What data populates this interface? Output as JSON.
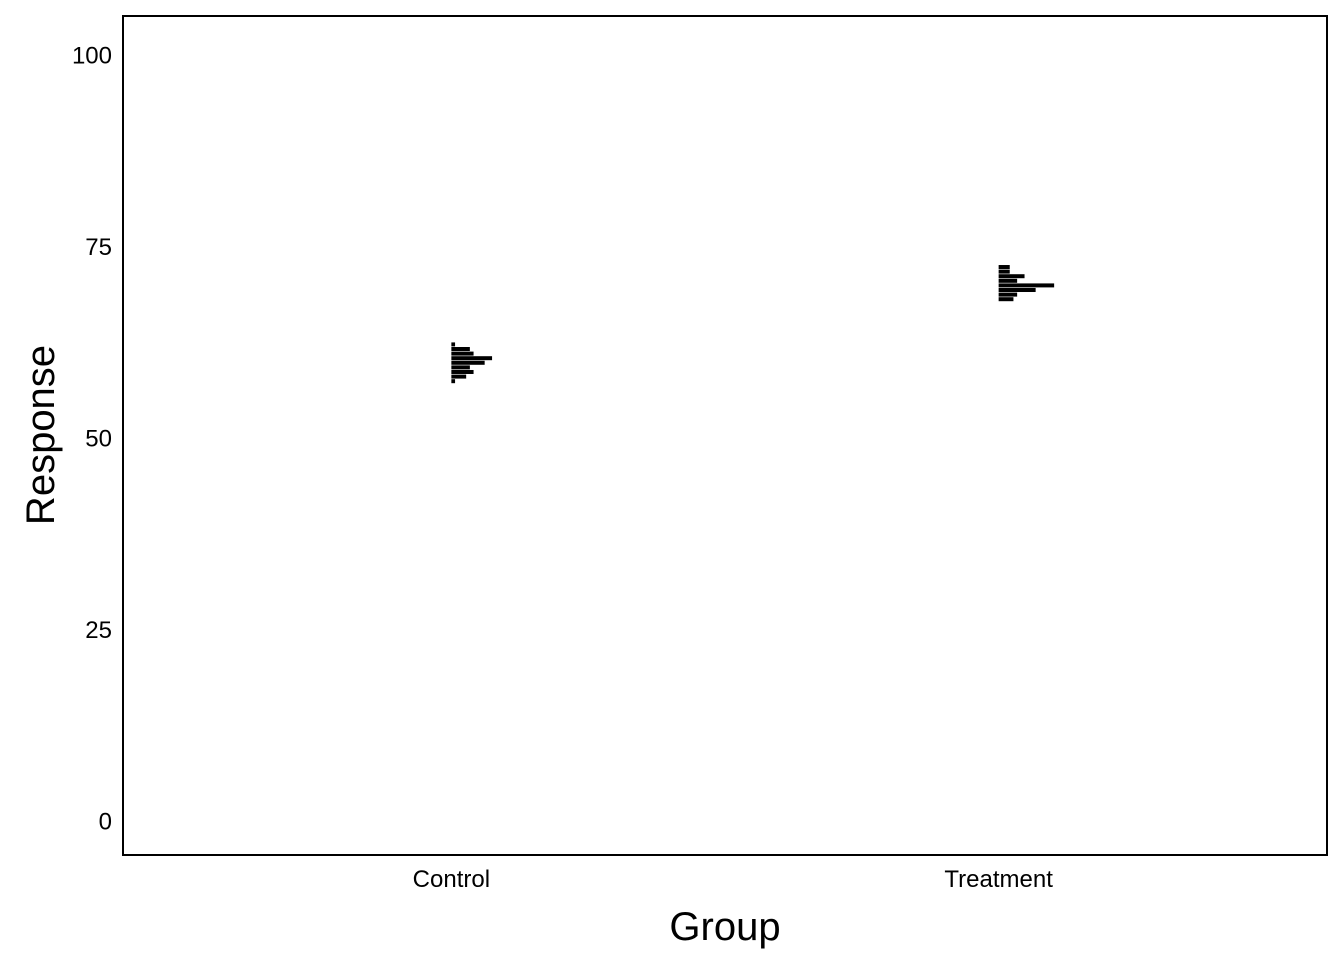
{
  "chart_data": {
    "type": "histogram",
    "title": "",
    "xlabel": "Group",
    "ylabel": "Response",
    "ylim": [
      -4.5,
      105
    ],
    "yticks": [
      "0",
      "25",
      "50",
      "75",
      "100"
    ],
    "categories": [
      "Control",
      "Treatment"
    ],
    "bin_width": 0.6,
    "series": [
      {
        "category": "Control",
        "bins": [
          {
            "y": 57.3,
            "count": 1
          },
          {
            "y": 57.9,
            "count": 4
          },
          {
            "y": 58.5,
            "count": 6
          },
          {
            "y": 59.1,
            "count": 5
          },
          {
            "y": 59.7,
            "count": 9
          },
          {
            "y": 60.3,
            "count": 11
          },
          {
            "y": 60.9,
            "count": 6
          },
          {
            "y": 61.5,
            "count": 5
          },
          {
            "y": 62.1,
            "count": 1
          }
        ]
      },
      {
        "category": "Treatment",
        "bins": [
          {
            "y": 68.0,
            "count": 4
          },
          {
            "y": 68.6,
            "count": 5
          },
          {
            "y": 69.2,
            "count": 10
          },
          {
            "y": 69.8,
            "count": 15
          },
          {
            "y": 70.4,
            "count": 5
          },
          {
            "y": 71.0,
            "count": 7
          },
          {
            "y": 71.6,
            "count": 3
          },
          {
            "y": 72.2,
            "count": 3
          }
        ]
      }
    ],
    "bar_color": "#000000",
    "grid": false
  }
}
